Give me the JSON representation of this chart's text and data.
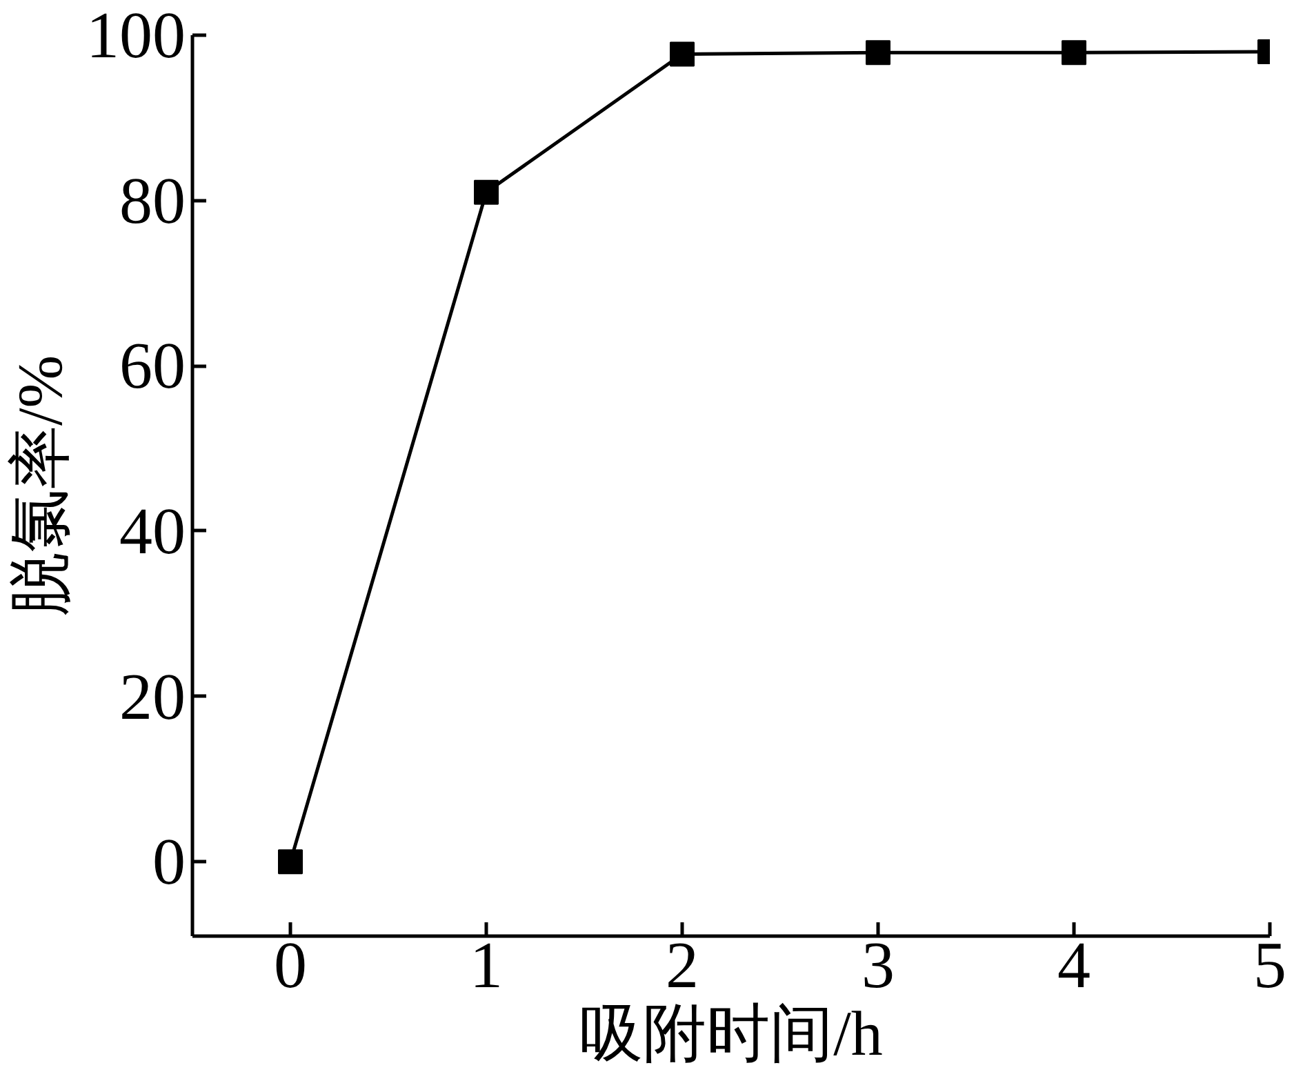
{
  "chart_data": {
    "type": "line",
    "xlabel": "吸附时间/h",
    "ylabel": "脱氯率/%",
    "x": [
      0,
      1,
      2,
      3,
      4,
      5
    ],
    "series": [
      {
        "color": "#000000",
        "values": [
          0,
          81,
          97.7,
          97.9,
          97.9,
          98
        ]
      }
    ],
    "xlim": [
      -0.5,
      5
    ],
    "xticks": [
      0,
      1,
      2,
      3,
      4,
      5
    ],
    "ylim": [
      -9,
      100
    ],
    "yticks": [
      0,
      20,
      40,
      60,
      80,
      100
    ],
    "grid": false,
    "marker": "square",
    "line_style": "solid"
  }
}
